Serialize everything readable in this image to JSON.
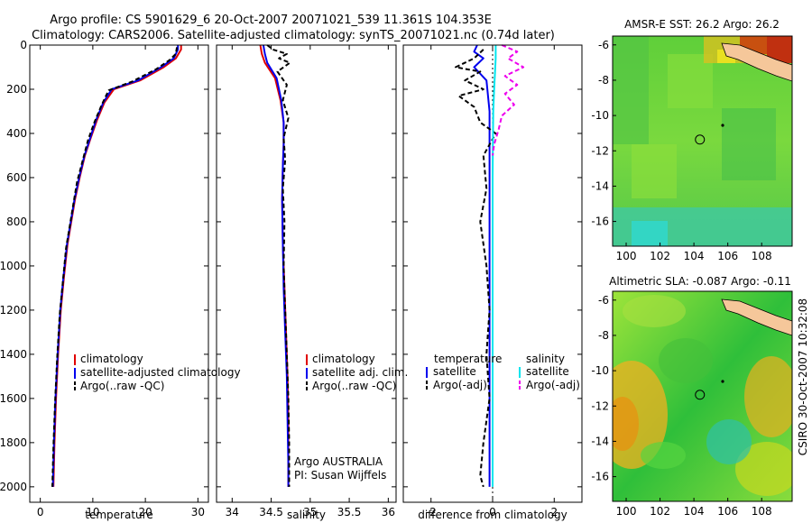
{
  "header": {
    "title_line1": "Argo profile: CS 5901629_6 20-Oct-2007 20071021_539 11.361S 104.353E",
    "title_line2": "Climatology: CARS2006. Satellite-adjusted climatology: synTS_20071021.nc (0.74d later)"
  },
  "side_label": "CSIRO 30-Oct-2007 10:32:08",
  "colors": {
    "climatology": "#e00000",
    "satellite": "#0000ee",
    "argo": "#000000",
    "sal_satellite": "#00e5ee",
    "sal_argo": "#ee00ee"
  },
  "chart_data": [
    {
      "id": "temp",
      "type": "line",
      "xlabel": "temperature",
      "ylabel": "",
      "xlim": [
        -2,
        32
      ],
      "ylim": [
        2070,
        0
      ],
      "xticks": [
        0,
        10,
        20,
        30
      ],
      "yticks": [
        0,
        200,
        400,
        600,
        800,
        1000,
        1200,
        1400,
        1600,
        1800,
        2000
      ],
      "legend": [
        "climatology",
        "satellite-adjusted climatology",
        "Argo(..raw -QC)"
      ],
      "series": [
        {
          "name": "climatology",
          "color": "#e00000",
          "width": 2,
          "x": [
            26.8,
            26.8,
            25.8,
            23.5,
            19.0,
            14.0,
            12.2,
            10.8,
            9.6,
            8.5,
            7.5,
            6.6,
            5.9,
            5.2,
            4.5,
            3.9,
            3.4,
            3.0,
            2.7,
            2.5
          ],
          "y": [
            0,
            20,
            60,
            100,
            160,
            200,
            260,
            340,
            420,
            500,
            600,
            700,
            800,
            900,
            1050,
            1200,
            1400,
            1600,
            1800,
            2000
          ]
        },
        {
          "name": "satellite-adjusted climatology",
          "color": "#0000ee",
          "width": 2,
          "x": [
            26.2,
            26.2,
            25.4,
            23.0,
            18.6,
            13.6,
            12.0,
            10.6,
            9.5,
            8.4,
            7.4,
            6.5,
            5.8,
            5.1,
            4.4,
            3.8,
            3.3,
            2.9,
            2.6,
            2.4
          ],
          "y": [
            0,
            20,
            60,
            100,
            160,
            200,
            260,
            340,
            420,
            500,
            600,
            700,
            800,
            900,
            1050,
            1200,
            1400,
            1600,
            1800,
            2000
          ]
        },
        {
          "name": "Argo(..raw -QC)",
          "color": "#000000",
          "width": 2,
          "dash": "5,3",
          "x": [
            26.0,
            25.8,
            24.5,
            22.0,
            17.5,
            13.0,
            11.7,
            10.3,
            9.1,
            8.1,
            7.0,
            6.3,
            5.6,
            4.9,
            4.3,
            3.7,
            3.2,
            2.8,
            2.5,
            2.3
          ],
          "y": [
            10,
            40,
            70,
            110,
            165,
            205,
            270,
            350,
            430,
            520,
            620,
            720,
            820,
            920,
            1070,
            1220,
            1420,
            1620,
            1820,
            2000
          ]
        }
      ]
    },
    {
      "id": "sal",
      "type": "line",
      "xlabel": "salinity",
      "ylabel": "",
      "xlim": [
        33.8,
        36.1
      ],
      "ylim": [
        2070,
        0
      ],
      "xticks": [
        34,
        34.5,
        35,
        35.5,
        36
      ],
      "yticks": [
        0,
        200,
        400,
        600,
        800,
        1000,
        1200,
        1400,
        1600,
        1800,
        2000
      ],
      "legend": [
        "climatology",
        "satellite adj. clim.",
        "Argo(..raw -QC)"
      ],
      "annotations": [
        "Argo AUSTRALIA",
        "PI: Susan Wijffels"
      ],
      "series": [
        {
          "name": "climatology",
          "color": "#e00000",
          "width": 2,
          "x": [
            34.36,
            34.38,
            34.42,
            34.55,
            34.62,
            34.66,
            34.66,
            34.65,
            34.64,
            34.65,
            34.67,
            34.69,
            34.71,
            34.72,
            34.72,
            34.72
          ],
          "y": [
            0,
            40,
            80,
            150,
            250,
            350,
            450,
            550,
            700,
            900,
            1100,
            1300,
            1500,
            1700,
            1900,
            2000
          ]
        },
        {
          "name": "satellite adj. clim.",
          "color": "#0000ee",
          "width": 2,
          "x": [
            34.4,
            34.42,
            34.45,
            34.57,
            34.63,
            34.66,
            34.66,
            34.65,
            34.64,
            34.65,
            34.66,
            34.68,
            34.7,
            34.71,
            34.72,
            34.72
          ],
          "y": [
            0,
            40,
            80,
            150,
            250,
            350,
            450,
            550,
            700,
            900,
            1100,
            1300,
            1500,
            1700,
            1900,
            2000
          ]
        },
        {
          "name": "Argo(..raw -QC)",
          "color": "#000000",
          "width": 2,
          "dash": "5,3",
          "x": [
            34.45,
            34.52,
            34.7,
            34.6,
            34.74,
            34.58,
            34.7,
            34.65,
            34.72,
            34.66,
            34.68,
            34.65,
            34.67,
            34.66,
            34.68,
            34.7,
            34.72,
            34.73,
            34.73
          ],
          "y": [
            0,
            20,
            40,
            60,
            80,
            120,
            180,
            250,
            330,
            420,
            520,
            650,
            800,
            1000,
            1200,
            1400,
            1600,
            1800,
            2000
          ]
        }
      ]
    },
    {
      "id": "diff",
      "type": "line",
      "xlabel": "difference from climatology",
      "ylabel": "",
      "xlim": [
        -2.9,
        2.9
      ],
      "ylim": [
        2070,
        0
      ],
      "xticks": [
        -2,
        0,
        2
      ],
      "yticks": [
        0,
        200,
        400,
        600,
        800,
        1000,
        1200,
        1400,
        1600,
        1800,
        2000
      ],
      "legend_titles": [
        "temperature",
        "salinity"
      ],
      "legend": [
        "satellite",
        "Argo(-adj)",
        "satellite",
        "Argo(-adj)"
      ],
      "series": [
        {
          "name": "temperature satellite",
          "color": "#0000ee",
          "width": 2,
          "x": [
            -0.5,
            -0.6,
            -0.3,
            -0.6,
            -0.2,
            -0.1,
            -0.1,
            -0.1,
            -0.1,
            -0.1,
            -0.1,
            -0.1,
            -0.1,
            -0.1,
            -0.1,
            -0.1
          ],
          "y": [
            0,
            30,
            60,
            100,
            160,
            300,
            400,
            500,
            700,
            900,
            1100,
            1300,
            1500,
            1700,
            1900,
            2000
          ]
        },
        {
          "name": "temperature Argo(-adj)",
          "color": "#000000",
          "width": 2,
          "dash": "5,3",
          "x": [
            -0.3,
            -0.6,
            -1.2,
            -0.4,
            -0.9,
            -0.3,
            -1.1,
            -0.6,
            -0.4,
            0.1,
            -0.3,
            -0.2,
            -0.4,
            -0.2,
            -0.1,
            -0.2,
            -0.1,
            -0.3,
            -0.4,
            -0.3
          ],
          "y": [
            20,
            60,
            100,
            120,
            160,
            200,
            230,
            280,
            350,
            400,
            500,
            650,
            800,
            1000,
            1200,
            1400,
            1600,
            1800,
            1950,
            2000
          ]
        },
        {
          "name": "salinity satellite",
          "color": "#00e5ee",
          "width": 2,
          "x": [
            0.1,
            0.1,
            0.08,
            0.05,
            0.02,
            0.01,
            0.0,
            0.0,
            0.0,
            0.0,
            0.0,
            0.0
          ],
          "y": [
            0,
            60,
            120,
            200,
            300,
            450,
            600,
            800,
            1100,
            1400,
            1700,
            2000
          ]
        },
        {
          "name": "salinity Argo(-adj)",
          "color": "#ee00ee",
          "width": 2,
          "dash": "5,3",
          "x": [
            0.3,
            0.8,
            0.5,
            1.0,
            0.4,
            0.8,
            0.4,
            0.7,
            0.3,
            0.2,
            0.05,
            0.0
          ],
          "y": [
            0,
            30,
            60,
            100,
            140,
            180,
            220,
            270,
            320,
            380,
            450,
            500
          ]
        }
      ]
    },
    {
      "id": "map_sst",
      "type": "heatmap",
      "title": "AMSR-E SST: 26.2  Argo: 26.2",
      "xlim": [
        99.2,
        109.8
      ],
      "ylim": [
        -17.4,
        -5.5
      ],
      "xticks": [
        100,
        102,
        104,
        106,
        108
      ],
      "yticks": [
        -6,
        -8,
        -10,
        -12,
        -14,
        -16
      ],
      "argo_position": [
        104.353,
        -11.361
      ]
    },
    {
      "id": "map_sla",
      "type": "heatmap",
      "title": "Altimetric SLA: -0.087  Argo: -0.11",
      "xlim": [
        99.2,
        109.8
      ],
      "ylim": [
        -17.4,
        -5.5
      ],
      "xticks": [
        100,
        102,
        104,
        106,
        108
      ],
      "yticks": [
        -6,
        -8,
        -10,
        -12,
        -14,
        -16
      ],
      "argo_position": [
        104.353,
        -11.361
      ]
    }
  ]
}
